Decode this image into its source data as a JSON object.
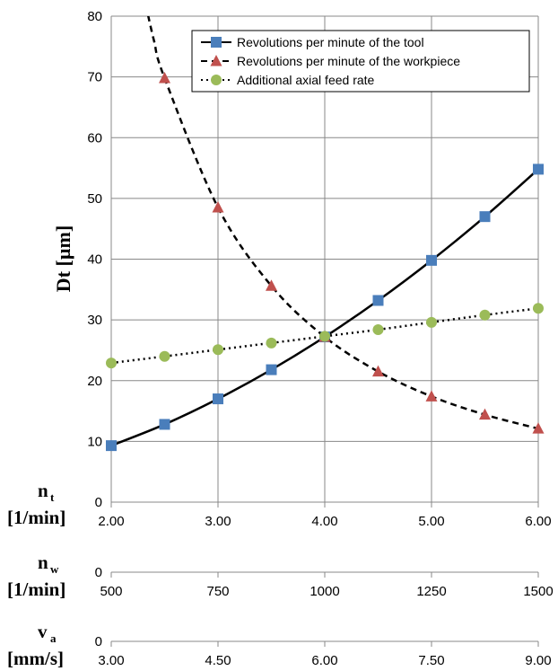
{
  "chart_data": {
    "type": "line",
    "ylabel": "Dt [µm]",
    "ylim": [
      0,
      80
    ],
    "yticks": [
      "0",
      "10",
      "20",
      "30",
      "40",
      "50",
      "60",
      "70",
      "80"
    ],
    "grid": "horizontal and vertical",
    "legend_position": "top-right",
    "x_axes": [
      {
        "key": "nt",
        "label_main": "n",
        "label_sub": "t",
        "unit": "[1/min]",
        "zero_label": "0",
        "range": [
          2.0,
          6.0
        ],
        "ticks": [
          "2.00",
          "3.00",
          "4.00",
          "5.00",
          "6.00"
        ]
      },
      {
        "key": "nw",
        "label_main": "n",
        "label_sub": "w",
        "unit": "[1/min]",
        "zero_label": "0",
        "range": [
          500,
          1500
        ],
        "ticks": [
          "500",
          "750",
          "1000",
          "1250",
          "1500"
        ]
      },
      {
        "key": "va",
        "label_main": "v",
        "label_sub": "a",
        "unit": "[mm/s]",
        "zero_label": "0",
        "range": [
          3.0,
          9.0
        ],
        "ticks": [
          "3.00",
          "4.50",
          "6.00",
          "7.50",
          "9.00"
        ]
      }
    ],
    "series": [
      {
        "name": "Revolutions per minute of the tool",
        "axis": "nt",
        "marker": "square",
        "line": "solid",
        "color": "#4a7ebb",
        "x": [
          2.0,
          2.5,
          3.0,
          3.5,
          4.0,
          4.5,
          5.0,
          5.5,
          6.0
        ],
        "y": [
          9.3,
          12.8,
          17.0,
          21.8,
          27.2,
          33.2,
          39.8,
          47.0,
          54.8
        ]
      },
      {
        "name": "Revolutions per minute of the workpiece",
        "axis": "nw",
        "marker": "triangle",
        "line": "dashed",
        "color": "#c0504d",
        "x": [
          625,
          750,
          875,
          1000,
          1125,
          1250,
          1375,
          1500
        ],
        "y": [
          69.8,
          48.5,
          35.6,
          27.2,
          21.5,
          17.4,
          14.4,
          12.1
        ]
      },
      {
        "name": "Additional axial feed rate",
        "axis": "va",
        "marker": "circle",
        "line": "dotted",
        "color": "#9bbb59",
        "x": [
          3.0,
          3.75,
          4.5,
          5.25,
          6.0,
          6.75,
          7.5,
          8.25,
          9.0
        ],
        "y": [
          22.9,
          24.0,
          25.1,
          26.2,
          27.3,
          28.4,
          29.6,
          30.8,
          31.9
        ]
      }
    ]
  }
}
